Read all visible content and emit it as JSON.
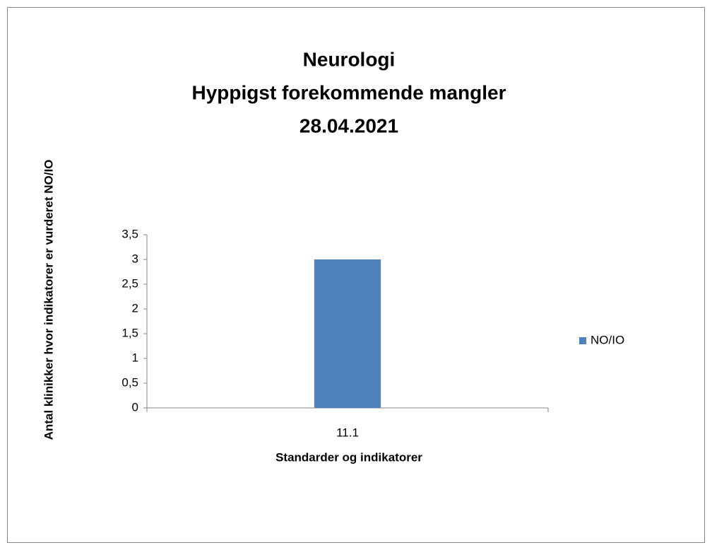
{
  "chart_data": {
    "type": "bar",
    "title": [
      "Neurologi",
      "Hyppigst forekommende mangler",
      "28.04.2021"
    ],
    "x_label": "Standarder og indikatorer",
    "y_label": "Antal klinikker hvor indikatorer er vurderet NO/IO",
    "categories": [
      "11.1"
    ],
    "series": [
      {
        "name": "NO/IO",
        "color": "#4f81bd",
        "values": [
          3
        ]
      }
    ],
    "ylim": [
      0,
      3.5
    ],
    "yticks": [
      0,
      {
        "value": 0.5,
        "label": "0,5"
      },
      1,
      {
        "value": 1.5,
        "label": "1,5"
      },
      2,
      {
        "value": 2.5,
        "label": "2,5"
      },
      3,
      {
        "value": 3.5,
        "label": "3,5"
      }
    ],
    "grid": false,
    "legend": "right"
  }
}
